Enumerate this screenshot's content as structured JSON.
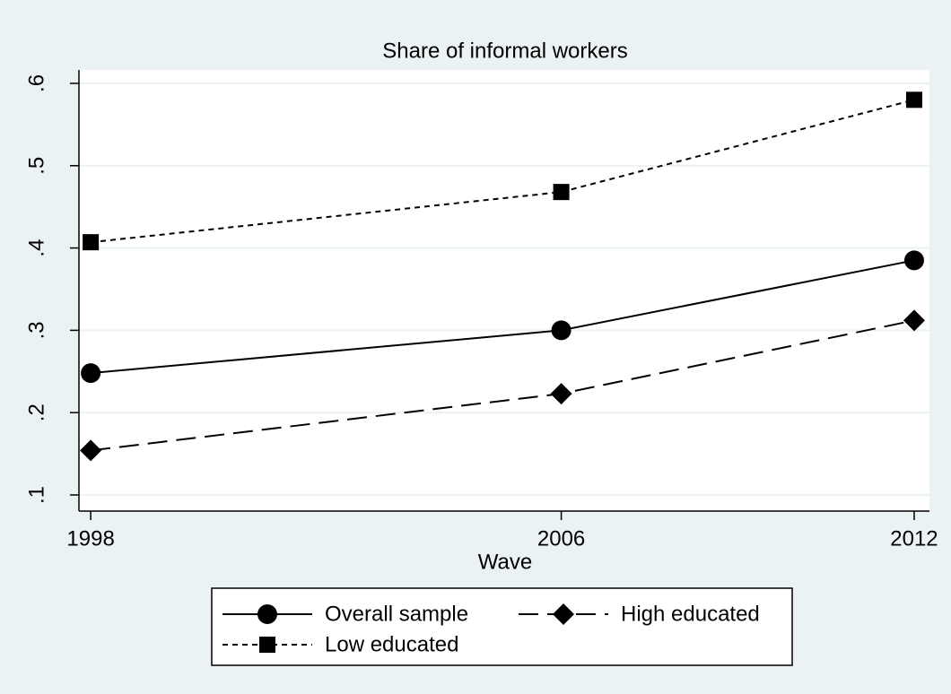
{
  "chart_data": {
    "type": "line",
    "title": "Share of informal workers",
    "x_label": "Wave",
    "x": [
      1998,
      2006,
      2012
    ],
    "series": [
      {
        "name": "Overall sample",
        "color": "#000000",
        "marker": "circle",
        "dash": "solid",
        "values": [
          0.248,
          0.3,
          0.385
        ]
      },
      {
        "name": "High educated",
        "color": "#000000",
        "marker": "diamond",
        "dash": "longdash",
        "values": [
          0.154,
          0.223,
          0.312
        ]
      },
      {
        "name": "Low educated",
        "color": "#000000",
        "marker": "square",
        "dash": "shortdash",
        "values": [
          0.407,
          0.468,
          0.58
        ]
      }
    ],
    "xlim": [
      1997.8,
      2012.26
    ],
    "xticks": [
      1998,
      2006,
      2012
    ],
    "ylim": [
      0.0804,
      0.6163
    ],
    "yticks": [
      {
        "value": 0.1,
        "label": ".1"
      },
      {
        "value": 0.2,
        "label": ".2"
      },
      {
        "value": 0.3,
        "label": ".3"
      },
      {
        "value": 0.4,
        "label": ".4"
      },
      {
        "value": 0.5,
        "label": ".5"
      },
      {
        "value": 0.6,
        "label": ".6"
      }
    ],
    "grid": true,
    "legend_position": "bottom"
  }
}
